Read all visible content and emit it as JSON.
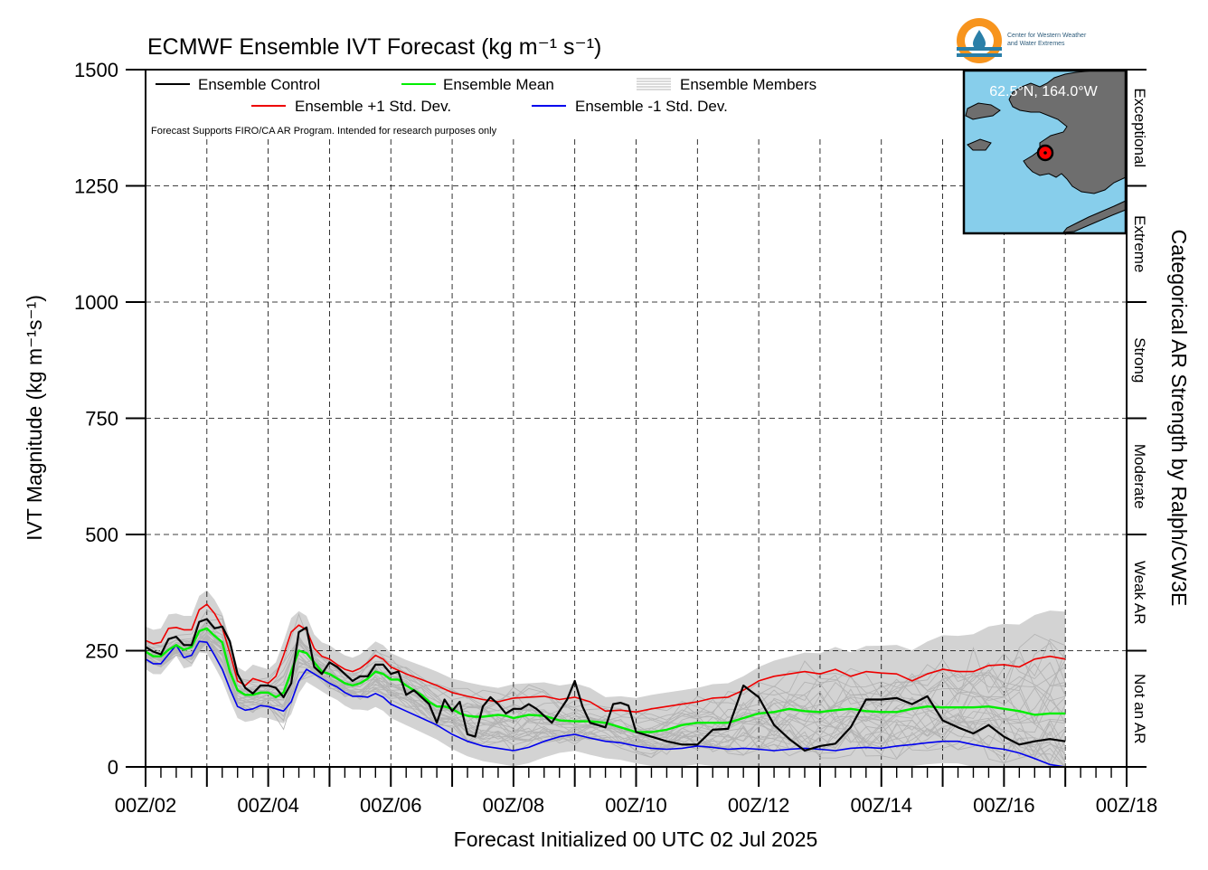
{
  "chart_data": {
    "type": "line",
    "title": "ECMWF Ensemble IVT Forecast (kg m⁻¹ s⁻¹)",
    "ylabel": "IVT Magnitude (kg m⁻¹s⁻¹)",
    "xlabel": "Forecast Initialized 00 UTC 02 Jul 2025",
    "right_label": "Categorical AR Strength by Ralph/CW3E",
    "note": "Forecast Supports FIRO/CA AR Program. Intended for research purposes only",
    "location_label": "62.5°N, 164.0°W",
    "logo_text": [
      "Center for Western Weather",
      "and Water Extremes"
    ],
    "ylim": [
      0,
      1500
    ],
    "yticks": [
      0,
      250,
      500,
      750,
      1000,
      1250,
      1500
    ],
    "x_unit": "forecast hours from 00Z/02 Jul",
    "xlim": [
      0,
      384
    ],
    "xticks": [
      {
        "h": 0,
        "label": "00Z/02"
      },
      {
        "h": 48,
        "label": "00Z/04"
      },
      {
        "h": 96,
        "label": "00Z/06"
      },
      {
        "h": 144,
        "label": "00Z/08"
      },
      {
        "h": 192,
        "label": "00Z/10"
      },
      {
        "h": 240,
        "label": "00Z/12"
      },
      {
        "h": 288,
        "label": "00Z/14"
      },
      {
        "h": 336,
        "label": "00Z/16"
      },
      {
        "h": 384,
        "label": "00Z/18"
      }
    ],
    "categories_ar": [
      {
        "label": "Not an AR",
        "from": 0,
        "to": 250
      },
      {
        "label": "Weak AR",
        "from": 250,
        "to": 500
      },
      {
        "label": "Moderate",
        "from": 500,
        "to": 750
      },
      {
        "label": "Strong",
        "from": 750,
        "to": 1000
      },
      {
        "label": "Extreme",
        "from": 1000,
        "to": 1250
      },
      {
        "label": "Exceptional",
        "from": 1250,
        "to": 1500
      }
    ],
    "legend": {
      "control": "Ensemble Control",
      "mean": "Ensemble Mean",
      "members": "Ensemble Members",
      "plus_sd": "Ensemble +1 Std. Dev.",
      "minus_sd": "Ensemble -1 Std. Dev."
    },
    "colors": {
      "control": "#000000",
      "mean": "#00ee00",
      "plus_sd": "#ee0000",
      "minus_sd": "#0000ee",
      "members": "#b4b4b4",
      "spread": "#d3d3d3",
      "map_ocean": "#87ceeb",
      "map_land": "#6e6e6e",
      "marker": "#ff0000",
      "logo_orange": "#f7941d",
      "logo_teal": "#2a7fa8"
    },
    "series": [
      {
        "name": "Ensemble Control",
        "x": [
          0,
          3,
          6,
          9,
          12,
          15,
          18,
          21,
          24,
          27,
          30,
          33,
          36,
          39,
          42,
          45,
          48,
          51,
          54,
          57,
          60,
          63,
          66,
          69,
          72,
          75,
          78,
          81,
          84,
          87,
          90,
          93,
          96,
          99,
          102,
          105,
          108,
          111,
          114,
          117,
          120,
          123,
          126,
          129,
          132,
          135,
          138,
          141,
          144,
          147,
          150,
          153,
          156,
          159,
          162,
          165,
          168,
          171,
          174,
          177,
          180,
          183,
          186,
          189,
          192,
          198,
          204,
          210,
          216,
          222,
          228,
          234,
          240,
          246,
          252,
          258,
          264,
          270,
          276,
          282,
          288,
          294,
          300,
          306,
          312,
          318,
          324,
          330,
          336,
          342,
          348,
          354,
          360
        ],
        "y": [
          258,
          248,
          242,
          275,
          280,
          262,
          262,
          312,
          318,
          298,
          302,
          270,
          200,
          170,
          158,
          175,
          175,
          170,
          150,
          180,
          290,
          300,
          215,
          200,
          225,
          215,
          200,
          185,
          195,
          195,
          220,
          220,
          200,
          205,
          155,
          165,
          150,
          135,
          95,
          145,
          120,
          140,
          70,
          65,
          130,
          150,
          135,
          115,
          125,
          125,
          135,
          125,
          110,
          95,
          120,
          145,
          185,
          130,
          95,
          90,
          85,
          135,
          138,
          132,
          75,
          65,
          55,
          48,
          48,
          80,
          82,
          175,
          150,
          90,
          60,
          35,
          45,
          50,
          85,
          145,
          145,
          148,
          135,
          152,
          100,
          85,
          72,
          90,
          65,
          48,
          55,
          60,
          55
        ]
      },
      {
        "name": "Ensemble Mean",
        "x": [
          0,
          3,
          6,
          9,
          12,
          15,
          18,
          21,
          24,
          27,
          30,
          33,
          36,
          39,
          42,
          45,
          48,
          51,
          54,
          57,
          60,
          63,
          66,
          69,
          72,
          75,
          78,
          81,
          84,
          87,
          90,
          93,
          96,
          99,
          102,
          105,
          108,
          111,
          114,
          117,
          120,
          123,
          126,
          129,
          132,
          135,
          138,
          141,
          144,
          150,
          156,
          162,
          168,
          174,
          180,
          186,
          192,
          198,
          204,
          210,
          216,
          222,
          228,
          234,
          240,
          246,
          252,
          258,
          264,
          270,
          276,
          282,
          288,
          294,
          300,
          306,
          312,
          318,
          324,
          330,
          336,
          342,
          348,
          354,
          360
        ],
        "y": [
          248,
          238,
          238,
          252,
          262,
          252,
          258,
          292,
          298,
          282,
          268,
          205,
          165,
          155,
          155,
          160,
          160,
          150,
          160,
          205,
          250,
          245,
          225,
          205,
          200,
          190,
          180,
          175,
          180,
          190,
          205,
          200,
          188,
          188,
          175,
          165,
          155,
          140,
          130,
          130,
          125,
          115,
          110,
          108,
          108,
          110,
          112,
          110,
          105,
          112,
          110,
          100,
          98,
          98,
          95,
          85,
          75,
          75,
          80,
          90,
          95,
          95,
          95,
          105,
          115,
          118,
          125,
          120,
          118,
          122,
          125,
          120,
          118,
          118,
          125,
          130,
          128,
          128,
          128,
          130,
          125,
          120,
          112,
          115,
          115
        ]
      },
      {
        "name": "Ensemble +1 Std. Dev.",
        "x": [
          0,
          3,
          6,
          9,
          12,
          15,
          18,
          21,
          24,
          27,
          30,
          33,
          36,
          39,
          42,
          45,
          48,
          51,
          54,
          57,
          60,
          63,
          66,
          69,
          72,
          75,
          78,
          81,
          84,
          87,
          90,
          93,
          96,
          102,
          108,
          114,
          120,
          126,
          132,
          138,
          144,
          150,
          156,
          162,
          168,
          174,
          180,
          186,
          192,
          198,
          204,
          210,
          216,
          222,
          228,
          234,
          240,
          246,
          252,
          258,
          264,
          270,
          276,
          282,
          288,
          294,
          300,
          306,
          312,
          318,
          324,
          330,
          336,
          342,
          348,
          354,
          360
        ],
        "y": [
          272,
          265,
          268,
          298,
          300,
          295,
          295,
          338,
          350,
          330,
          300,
          245,
          185,
          175,
          190,
          185,
          180,
          195,
          240,
          290,
          305,
          295,
          255,
          238,
          232,
          220,
          210,
          205,
          212,
          225,
          240,
          232,
          215,
          200,
          188,
          175,
          160,
          152,
          145,
          140,
          148,
          150,
          152,
          145,
          150,
          140,
          120,
          122,
          118,
          125,
          130,
          135,
          140,
          148,
          150,
          165,
          185,
          195,
          200,
          205,
          200,
          210,
          195,
          205,
          202,
          200,
          185,
          200,
          210,
          205,
          205,
          218,
          220,
          215,
          232,
          238,
          232
        ]
      },
      {
        "name": "Ensemble -1 Std. Dev.",
        "x": [
          0,
          3,
          6,
          9,
          12,
          15,
          18,
          21,
          24,
          27,
          30,
          33,
          36,
          39,
          42,
          45,
          48,
          51,
          54,
          57,
          60,
          63,
          66,
          69,
          72,
          75,
          78,
          81,
          84,
          87,
          90,
          93,
          96,
          102,
          108,
          114,
          120,
          126,
          132,
          138,
          144,
          150,
          156,
          162,
          168,
          174,
          180,
          186,
          192,
          198,
          204,
          210,
          216,
          222,
          228,
          234,
          240,
          246,
          252,
          258,
          264,
          270,
          276,
          282,
          288,
          294,
          300,
          306,
          312,
          318,
          324,
          330,
          336,
          342,
          348,
          354,
          360
        ],
        "y": [
          232,
          222,
          222,
          242,
          262,
          235,
          240,
          270,
          268,
          240,
          210,
          168,
          130,
          122,
          125,
          132,
          130,
          125,
          120,
          140,
          185,
          210,
          200,
          190,
          180,
          172,
          160,
          152,
          152,
          150,
          158,
          150,
          135,
          120,
          105,
          90,
          70,
          55,
          45,
          40,
          35,
          42,
          55,
          65,
          70,
          62,
          55,
          52,
          45,
          40,
          38,
          40,
          45,
          42,
          38,
          40,
          38,
          35,
          38,
          40,
          38,
          35,
          40,
          42,
          40,
          45,
          48,
          52,
          55,
          55,
          48,
          42,
          38,
          30,
          18,
          5,
          0
        ]
      }
    ]
  }
}
